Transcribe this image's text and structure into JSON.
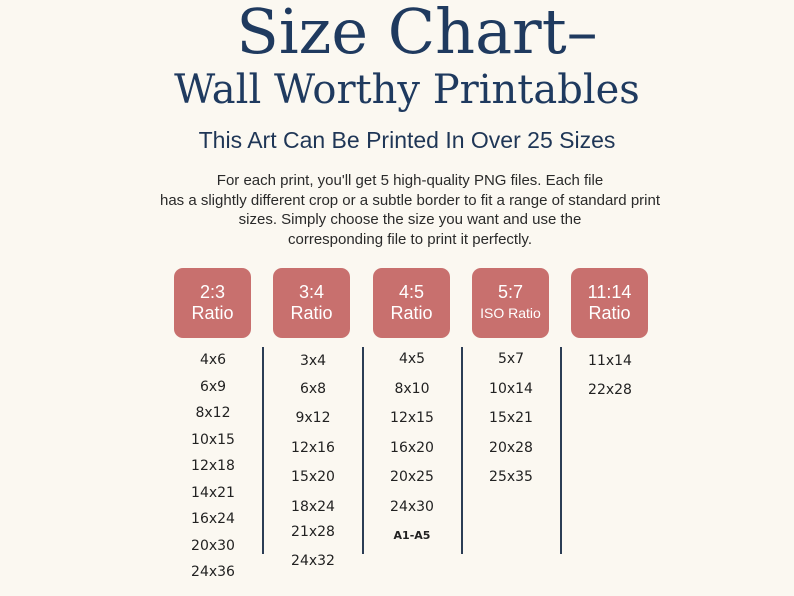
{
  "header": {
    "title": "Size Chart–",
    "subtitle": "Wall Worthy Printables"
  },
  "tagline": "This Art Can Be Printed In Over 25 Sizes",
  "description": [
    "For each print, you'll get 5 high-quality PNG files. Each file",
    "has a slightly different crop or a subtle border to fit a range of standard print",
    "sizes. Simply choose the size you want and use the",
    "corresponding file to print it perfectly."
  ],
  "columns": [
    {
      "ratio": "2:3",
      "label": "Ratio",
      "sizes": [
        "4x6",
        "6x9",
        "8x12",
        "10x15",
        "12x18",
        "14x21",
        "16x24",
        "20x30",
        "24x36"
      ]
    },
    {
      "ratio": "3:4",
      "label": "Ratio",
      "sizes": [
        "3x4",
        "6x8",
        "9x12",
        "12x16",
        "15x20",
        "18x24",
        "21x28",
        "24x32"
      ]
    },
    {
      "ratio": "4:5",
      "label": "Ratio",
      "sizes": [
        "4x5",
        "8x10",
        "12x15",
        "16x20",
        "20x25",
        "24x30",
        "A1-A5"
      ]
    },
    {
      "ratio": "5:7",
      "label": "ISO Ratio",
      "sizes": [
        "5x7",
        "10x14",
        "15x21",
        "20x28",
        "25x35"
      ]
    },
    {
      "ratio": "11:14",
      "label": "Ratio",
      "sizes": [
        "11x14",
        "22x28"
      ]
    }
  ],
  "colors": {
    "title": "#1f3a5f",
    "badge": "#c8706e",
    "background": "#fbf8f1"
  }
}
